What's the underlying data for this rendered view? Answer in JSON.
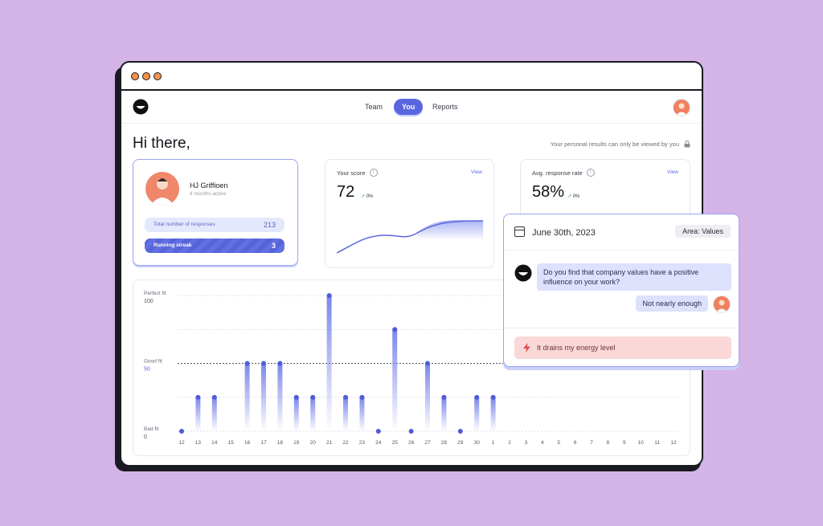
{
  "nav": {
    "tabs": [
      "Team",
      "You",
      "Reports"
    ],
    "active_tab": "You"
  },
  "page": {
    "greeting": "Hi there,",
    "privacy_note": "Your personal results can only be viewed by you"
  },
  "profile": {
    "name": "HJ Griffioen",
    "active": "4 months active",
    "responses_label": "Total number of responses",
    "responses_value": "213",
    "streak_label": "Running streak",
    "streak_value": "3"
  },
  "metrics": [
    {
      "label": "Your score",
      "value": "72",
      "delta": "0%",
      "view": "View"
    },
    {
      "label": "Avg. response rate",
      "value": "58%",
      "delta": "0%",
      "view": "View"
    }
  ],
  "popup": {
    "date": "June 30th, 2023",
    "area": "Area: Values",
    "question": "Do you find that company values have a positive influence on your work?",
    "answer": "Not nearly enough",
    "feeling": "It drains my energy level"
  },
  "colors": {
    "accent": "#5a66e0",
    "background": "#d4b3e6",
    "alert_bg": "#fad8d8",
    "bubble": "#dee1fc"
  },
  "chart_data": {
    "type": "scatter",
    "y_axis": [
      {
        "name": "Perfect fit",
        "value": "100"
      },
      {
        "name": "Good fit",
        "value": "50"
      },
      {
        "name": "Bad fit",
        "value": "0"
      }
    ],
    "x": [
      "12",
      "13",
      "14",
      "15",
      "16",
      "17",
      "18",
      "19",
      "20",
      "21",
      "22",
      "23",
      "24",
      "25",
      "26",
      "27",
      "28",
      "29",
      "30",
      "1",
      "2",
      "3",
      "4",
      "5",
      "6",
      "7",
      "8",
      "9",
      "10",
      "11",
      "12"
    ],
    "values": [
      0,
      50,
      50,
      null,
      100,
      100,
      100,
      50,
      50,
      200,
      50,
      50,
      0,
      150,
      0,
      100,
      50,
      0,
      50,
      50,
      null,
      null,
      null,
      null,
      null,
      null,
      null,
      null,
      null,
      null,
      null
    ],
    "ylim": [
      0,
      200
    ]
  }
}
